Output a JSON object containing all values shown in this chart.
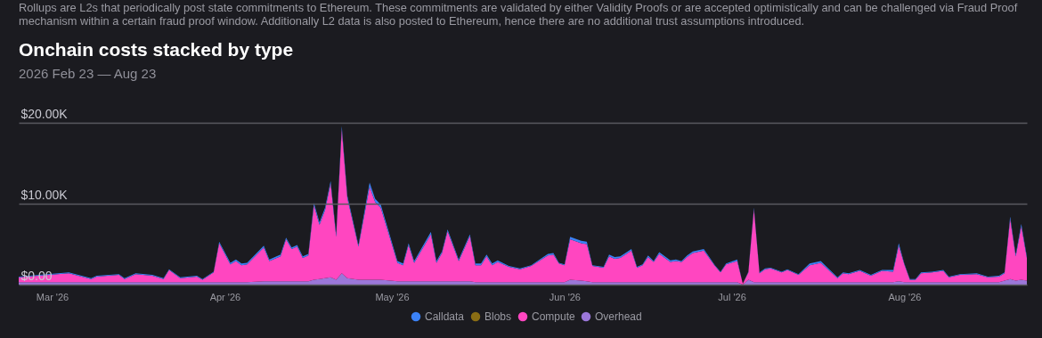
{
  "chart_data": {
    "type": "area",
    "stacked": true,
    "annotations": [
      "Rollups are L2s that periodically post state commitments to Ethereum. These commitments are validated by either Validity Proofs or are accepted optimistically and can be challenged via Fraud Proof mechanism within a certain fraud proof window. Additionally L2 data is also posted to Ethereum, hence there are no additional trust assumptions introduced."
    ],
    "title": "Onchain costs stacked by type",
    "subtitle": "2026 Feb 23 — Aug 23",
    "x": [
      "2026-02-23",
      "2026-03-04",
      "2026-03-08",
      "2026-03-09",
      "2026-03-13",
      "2026-03-14",
      "2026-03-16",
      "2026-03-19",
      "2026-03-21",
      "2026-03-22",
      "2026-03-24",
      "2026-03-27",
      "2026-03-28",
      "2026-03-30",
      "2026-03-31",
      "2026-04-02",
      "2026-04-03",
      "2026-04-04",
      "2026-04-05",
      "2026-04-08",
      "2026-04-09",
      "2026-04-11",
      "2026-04-12",
      "2026-04-13",
      "2026-04-14",
      "2026-04-15",
      "2026-04-16",
      "2026-04-17",
      "2026-04-18",
      "2026-04-19",
      "2026-04-20",
      "2026-04-21",
      "2026-04-22",
      "2026-04-23",
      "2026-04-25",
      "2026-04-27",
      "2026-04-28",
      "2026-04-29",
      "2026-05-02",
      "2026-05-03",
      "2026-05-04",
      "2026-05-05",
      "2026-05-08",
      "2026-05-09",
      "2026-05-10",
      "2026-05-11",
      "2026-05-13",
      "2026-05-15",
      "2026-05-16",
      "2026-05-17",
      "2026-05-18",
      "2026-05-19",
      "2026-05-20",
      "2026-05-22",
      "2026-05-24",
      "2026-05-26",
      "2026-05-29",
      "2026-05-30",
      "2026-05-31",
      "2026-06-01",
      "2026-06-02",
      "2026-06-04",
      "2026-06-05",
      "2026-06-06",
      "2026-06-08",
      "2026-06-09",
      "2026-06-10",
      "2026-06-11",
      "2026-06-13",
      "2026-06-14",
      "2026-06-15",
      "2026-06-16",
      "2026-06-17",
      "2026-06-18",
      "2026-06-20",
      "2026-06-21",
      "2026-06-22",
      "2026-06-23",
      "2026-06-24",
      "2026-06-26",
      "2026-06-28",
      "2026-06-29",
      "2026-06-30",
      "2026-07-02",
      "2026-07-03",
      "2026-07-04",
      "2026-07-05",
      "2026-07-06",
      "2026-07-07",
      "2026-07-08",
      "2026-07-10",
      "2026-07-11",
      "2026-07-13",
      "2026-07-15",
      "2026-07-17",
      "2026-07-20",
      "2026-07-21",
      "2026-07-22",
      "2026-07-24",
      "2026-07-26",
      "2026-07-28",
      "2026-07-30",
      "2026-07-31",
      "2026-08-01",
      "2026-08-02",
      "2026-08-03",
      "2026-08-04",
      "2026-08-06",
      "2026-08-08",
      "2026-08-09",
      "2026-08-11",
      "2026-08-14",
      "2026-08-16",
      "2026-08-18",
      "2026-08-19",
      "2026-08-20",
      "2026-08-21",
      "2026-08-22",
      "2026-08-23"
    ],
    "series": [
      {
        "name": "Overhead",
        "color": "#9b77d9",
        "values": [
          300,
          300,
          300,
          300,
          300,
          300,
          300,
          300,
          300,
          300,
          300,
          300,
          300,
          300,
          300,
          300,
          300,
          300,
          300,
          400,
          400,
          400,
          400,
          400,
          400,
          400,
          400,
          600,
          700,
          800,
          900,
          600,
          1400,
          800,
          600,
          600,
          600,
          600,
          400,
          400,
          400,
          400,
          400,
          400,
          400,
          400,
          400,
          400,
          300,
          300,
          300,
          300,
          300,
          300,
          300,
          300,
          300,
          300,
          300,
          300,
          600,
          500,
          400,
          300,
          300,
          300,
          300,
          300,
          300,
          300,
          300,
          300,
          300,
          300,
          300,
          300,
          300,
          300,
          300,
          300,
          300,
          300,
          300,
          300,
          0,
          600,
          300,
          300,
          300,
          300,
          300,
          300,
          300,
          300,
          300,
          300,
          300,
          300,
          300,
          300,
          300,
          300,
          400,
          300,
          300,
          300,
          300,
          300,
          300,
          300,
          300,
          300,
          300,
          300,
          500,
          700,
          500,
          600,
          500
        ]
      },
      {
        "name": "Compute",
        "color": "#ff46c0",
        "values": [
          600,
          1100,
          400,
          700,
          900,
          400,
          1000,
          800,
          400,
          1500,
          500,
          700,
          300,
          1200,
          4800,
          2200,
          2600,
          2100,
          2200,
          4200,
          2500,
          3100,
          5200,
          4000,
          4300,
          2900,
          3200,
          9200,
          6700,
          8400,
          11600,
          5300,
          17800,
          9900,
          4100,
          11500,
          9600,
          8900,
          2300,
          2000,
          4500,
          2300,
          5800,
          2300,
          3500,
          6200,
          2500,
          5600,
          2100,
          2100,
          3200,
          2100,
          2500,
          1900,
          1600,
          2000,
          3300,
          3400,
          2300,
          2100,
          5000,
          4600,
          4600,
          2000,
          1800,
          3200,
          2900,
          3000,
          3900,
          1800,
          2100,
          3100,
          2500,
          3500,
          2500,
          2600,
          2500,
          3100,
          3600,
          3900,
          2000,
          1200,
          2200,
          2600,
          100,
          900,
          9000,
          1100,
          1600,
          1700,
          1200,
          1500,
          900,
          2100,
          2400,
          500,
          1100,
          1000,
          1400,
          800,
          1400,
          1300,
          4400,
          2200,
          300,
          300,
          1100,
          1200,
          1400,
          600,
          900,
          1000,
          600,
          700,
          900,
          7400,
          3000,
          6600,
          2800
        ]
      },
      {
        "name": "Blobs",
        "color": "#8a6d14",
        "values": [
          null,
          null,
          null,
          null,
          null,
          null,
          null,
          null,
          null,
          null,
          null,
          null,
          null,
          null,
          null,
          null,
          null,
          null,
          null,
          null,
          null,
          null,
          null,
          null,
          null,
          null,
          null,
          null,
          null,
          null,
          null,
          null,
          null,
          null,
          null,
          null,
          null,
          null,
          null,
          null,
          null,
          null,
          null,
          null,
          null,
          null,
          null,
          null,
          null,
          null,
          null,
          null,
          null,
          null,
          null,
          null,
          null,
          null,
          null,
          null,
          null,
          null,
          null,
          null,
          null,
          null,
          null,
          null,
          null,
          null,
          null,
          null,
          null,
          null,
          null,
          null,
          null,
          null,
          null,
          null,
          null,
          null,
          null,
          null,
          null,
          null,
          null,
          null,
          null,
          null,
          null,
          null,
          null,
          null,
          null,
          null,
          null,
          null,
          null,
          null,
          null,
          null,
          null,
          null,
          null,
          null,
          null,
          null,
          null,
          null,
          null,
          null,
          null,
          null,
          null,
          null,
          null,
          null,
          null
        ]
      },
      {
        "name": "Calldata",
        "color": "#3b82f6",
        "values": [
          100,
          100,
          100,
          100,
          100,
          100,
          100,
          100,
          100,
          100,
          100,
          100,
          100,
          100,
          200,
          200,
          200,
          200,
          200,
          200,
          200,
          200,
          200,
          200,
          200,
          200,
          200,
          300,
          300,
          300,
          300,
          300,
          400,
          300,
          200,
          500,
          400,
          400,
          200,
          200,
          200,
          200,
          300,
          200,
          200,
          200,
          200,
          200,
          200,
          200,
          200,
          200,
          200,
          100,
          100,
          100,
          200,
          200,
          100,
          100,
          300,
          300,
          300,
          100,
          100,
          200,
          200,
          200,
          200,
          100,
          100,
          200,
          100,
          200,
          200,
          200,
          100,
          200,
          200,
          200,
          100,
          100,
          100,
          200,
          0,
          100,
          200,
          100,
          100,
          100,
          100,
          100,
          100,
          200,
          200,
          100,
          100,
          100,
          100,
          100,
          100,
          200,
          300,
          100,
          100,
          100,
          100,
          100,
          100,
          100,
          100,
          100,
          100,
          100,
          100,
          300,
          200,
          300,
          200
        ]
      }
    ],
    "xlim": [
      "2026-02-23",
      "2026-08-23"
    ],
    "xticks": [
      {
        "value": "2026-03-01",
        "label": "Mar '26"
      },
      {
        "value": "2026-04-01",
        "label": "Apr '26"
      },
      {
        "value": "2026-05-01",
        "label": "May '26"
      },
      {
        "value": "2026-06-01",
        "label": "Jun '26"
      },
      {
        "value": "2026-07-01",
        "label": "Jul '26"
      },
      {
        "value": "2026-08-01",
        "label": "Aug '26"
      }
    ],
    "ylim": [
      0,
      20000
    ],
    "yticks": [
      {
        "value": 0,
        "label": "$0.00"
      },
      {
        "value": 10000,
        "label": "$10.00K"
      },
      {
        "value": 20000,
        "label": "$20.00K"
      }
    ],
    "grid": "y",
    "legend": "bottom"
  }
}
